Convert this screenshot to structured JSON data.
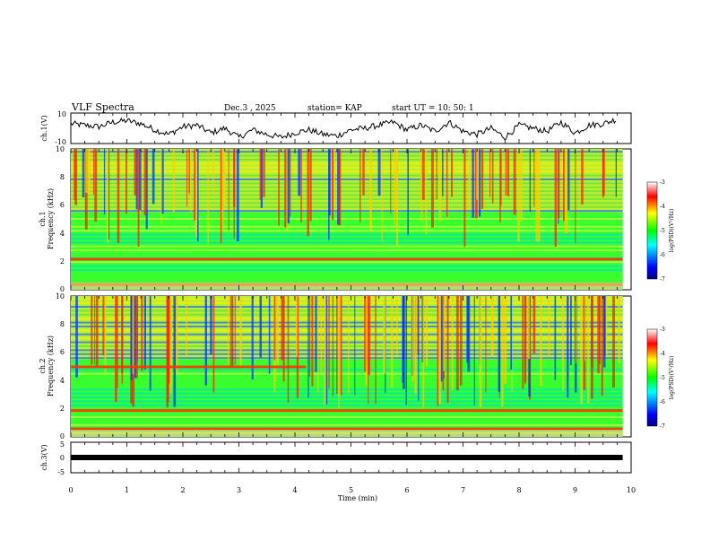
{
  "header": {
    "title": "VLF Spectra",
    "date": "Dec.3 , 2025",
    "station": "station= KAP",
    "start": "start UT = 10: 50: 1"
  },
  "chart_data": [
    {
      "type": "line",
      "panel": "ch1-waveform",
      "ylabel": "ch.1(V)",
      "ylim": [
        -10,
        10
      ],
      "ytick_labels": [
        "10",
        "-10"
      ],
      "x": [
        0,
        0.25,
        0.5,
        0.75,
        1,
        1.25,
        1.5,
        1.75,
        2,
        2.25,
        2.5,
        2.75,
        3,
        3.25,
        3.5,
        3.75,
        4,
        4.25,
        4.5,
        4.75,
        5,
        5.25,
        5.5,
        5.75,
        6,
        6.25,
        6.5,
        6.75,
        7,
        7.25,
        7.5,
        7.75,
        8,
        8.25,
        8.5,
        8.75,
        9,
        9.25,
        9.5,
        9.75
      ],
      "values": [
        3,
        2,
        1,
        4,
        5,
        3,
        -1,
        -4,
        1,
        2,
        -3,
        0,
        -6,
        -1,
        -4,
        -6,
        -3,
        -1,
        -4,
        -5,
        -1,
        0,
        2,
        4,
        -1,
        2,
        -2,
        4,
        -2,
        -4,
        0,
        -6,
        2,
        0,
        -2,
        4,
        -3,
        2,
        3,
        6
      ]
    },
    {
      "type": "heatmap",
      "panel": "ch1-spectrogram",
      "ylabel_line1": "ch.1",
      "ylabel_line2": "Frequency (kHz)",
      "ylim": [
        0,
        10
      ],
      "ytick_labels": [
        "0",
        "2",
        "4",
        "6",
        "8",
        "10"
      ],
      "colorbar": {
        "label": "log(PSD)(V²/Hz)",
        "range": [
          -7,
          -3
        ],
        "tick_labels": [
          "-3",
          "-4",
          "-5",
          "-6",
          "-7"
        ]
      },
      "bright_lines_khz": [
        2.2,
        0.4
      ],
      "noisy_band_khz": [
        5.5,
        10
      ]
    },
    {
      "type": "heatmap",
      "panel": "ch2-spectrogram",
      "ylabel_line1": "ch.2",
      "ylabel_line2": "Frequency (kHz)",
      "ylim": [
        0,
        10
      ],
      "ytick_labels": [
        "0",
        "2",
        "4",
        "6",
        "8",
        "10"
      ],
      "colorbar": {
        "label": "log(PSD)(V²/Hz)",
        "range": [
          -7,
          -3
        ],
        "tick_labels": [
          "-3",
          "-4",
          "-5",
          "-6",
          "-7"
        ]
      },
      "bright_lines_khz": [
        5.0,
        1.9,
        0.6
      ],
      "noisy_band_khz": [
        5.5,
        10
      ]
    },
    {
      "type": "line",
      "panel": "ch3-waveform",
      "ylabel": "ch.3(V)",
      "ylim": [
        -5,
        5
      ],
      "ytick_labels": [
        "5",
        "0",
        "-5"
      ],
      "constant_value": 0
    }
  ],
  "xaxis": {
    "label": "Time (min)",
    "xlim": [
      0,
      10
    ],
    "data_end": 9.85,
    "tick_labels": [
      "0",
      "1",
      "2",
      "3",
      "4",
      "5",
      "6",
      "7",
      "8",
      "9",
      "10"
    ]
  },
  "colors": {
    "colormap": [
      "#000080",
      "#0000ff",
      "#00ffff",
      "#00ff00",
      "#ffff00",
      "#ff0000",
      "#ffffff"
    ]
  }
}
